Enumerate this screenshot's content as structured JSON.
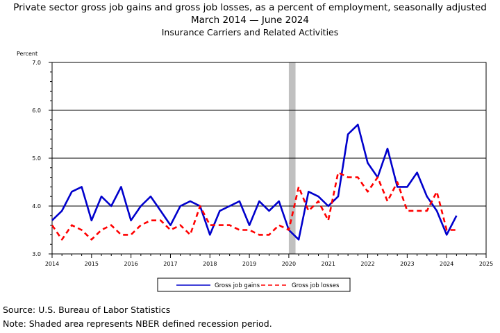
{
  "header": {
    "title": "Private sector gross job gains and gross job losses, as a percent of employment, seasonally adjusted",
    "period_start": "March 2014",
    "period_sep": "—",
    "period_end": "June 2024",
    "subtitle": "Insurance Carriers and Related Activities"
  },
  "footer": {
    "source": "Source: U.S. Bureau of Labor Statistics",
    "note": "Note: Shaded area represents NBER defined recession period."
  },
  "colors": {
    "gains": "#0000cc",
    "losses": "#ff0000",
    "recession": "#c0c0c0",
    "grid": "#000000"
  },
  "chart_data": {
    "type": "line",
    "ylabel": "Percent",
    "ylim": [
      3.0,
      7.0
    ],
    "yticks": [
      "3.0",
      "4.0",
      "5.0",
      "6.0",
      "7.0"
    ],
    "xlim": [
      2014,
      2025
    ],
    "xticks": [
      "2014",
      "2015",
      "2016",
      "2017",
      "2018",
      "2019",
      "2020",
      "2021",
      "2022",
      "2023",
      "2024",
      "2025"
    ],
    "gridlines": "horizontal at labeled ticks",
    "legend_position": "bottom-center",
    "recession": {
      "start": 2020.0,
      "end": 2020.17
    },
    "x": [
      2014.0,
      2014.25,
      2014.5,
      2014.75,
      2015.0,
      2015.25,
      2015.5,
      2015.75,
      2016.0,
      2016.25,
      2016.5,
      2016.75,
      2017.0,
      2017.25,
      2017.5,
      2017.75,
      2018.0,
      2018.25,
      2018.5,
      2018.75,
      2019.0,
      2019.25,
      2019.5,
      2019.75,
      2020.0,
      2020.25,
      2020.5,
      2020.75,
      2021.0,
      2021.25,
      2021.5,
      2021.75,
      2022.0,
      2022.25,
      2022.5,
      2022.75,
      2023.0,
      2023.25,
      2023.5,
      2023.75,
      2024.0,
      2024.25
    ],
    "series": [
      {
        "name": "Gross job gains",
        "style": "solid",
        "values": [
          3.7,
          3.9,
          4.3,
          4.4,
          3.7,
          4.2,
          4.0,
          4.4,
          3.7,
          4.0,
          4.2,
          3.9,
          3.6,
          4.0,
          4.1,
          4.0,
          3.4,
          3.9,
          4.0,
          4.1,
          3.6,
          4.1,
          3.9,
          4.1,
          3.5,
          3.3,
          4.3,
          4.2,
          4.0,
          4.2,
          5.5,
          5.7,
          4.9,
          4.6,
          5.2,
          4.4,
          4.4,
          4.7,
          4.2,
          3.9,
          3.4,
          3.8
        ]
      },
      {
        "name": "Gross job losses",
        "style": "dashed",
        "values": [
          3.6,
          3.3,
          3.6,
          3.5,
          3.3,
          3.5,
          3.6,
          3.4,
          3.4,
          3.6,
          3.7,
          3.7,
          3.5,
          3.6,
          3.4,
          4.0,
          3.6,
          3.6,
          3.6,
          3.5,
          3.5,
          3.4,
          3.4,
          3.6,
          3.5,
          4.4,
          3.9,
          4.1,
          3.7,
          4.7,
          4.6,
          4.6,
          4.3,
          4.6,
          4.1,
          4.5,
          3.9,
          3.9,
          3.9,
          4.3,
          3.5,
          3.5
        ]
      }
    ]
  }
}
